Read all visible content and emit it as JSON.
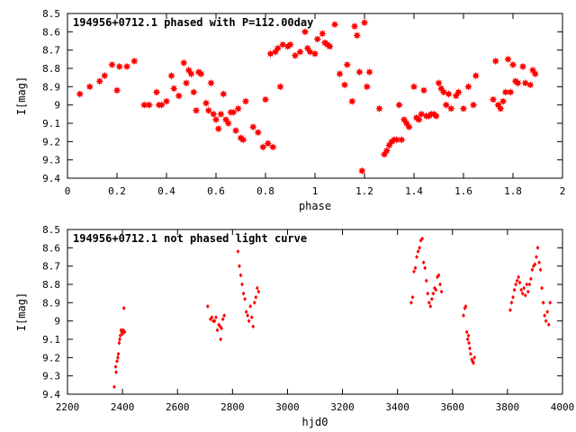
{
  "chart_data": [
    {
      "type": "scatter",
      "title": "194956+0712.1 phased with P=112.00day",
      "xlabel": "phase",
      "ylabel": "I[mag]",
      "xlim": [
        0,
        2
      ],
      "ylim": [
        8.5,
        9.4
      ],
      "y_inverted": true,
      "x_ticks": [
        "0",
        "0.2",
        "0.4",
        "0.6",
        "0.8",
        "1",
        "1.2",
        "1.4",
        "1.6",
        "1.8",
        "2"
      ],
      "y_ticks": [
        "8.5",
        "8.6",
        "8.7",
        "8.8",
        "8.9",
        "9",
        "9.1",
        "9.2",
        "9.3",
        "9.4"
      ],
      "marker": "star",
      "color": "#ff0000",
      "points": [
        [
          0.05,
          8.94
        ],
        [
          0.09,
          8.9
        ],
        [
          0.13,
          8.87
        ],
        [
          0.15,
          8.84
        ],
        [
          0.18,
          8.78
        ],
        [
          0.2,
          8.92
        ],
        [
          0.21,
          8.79
        ],
        [
          0.24,
          8.79
        ],
        [
          0.27,
          8.76
        ],
        [
          0.31,
          9.0
        ],
        [
          0.33,
          9.0
        ],
        [
          0.36,
          8.93
        ],
        [
          0.37,
          9.0
        ],
        [
          0.38,
          9.0
        ],
        [
          0.4,
          8.98
        ],
        [
          0.42,
          8.84
        ],
        [
          0.43,
          8.91
        ],
        [
          0.45,
          8.95
        ],
        [
          0.47,
          8.77
        ],
        [
          0.48,
          8.88
        ],
        [
          0.49,
          8.81
        ],
        [
          0.5,
          8.83
        ],
        [
          0.51,
          8.93
        ],
        [
          0.52,
          9.03
        ],
        [
          0.53,
          8.82
        ],
        [
          0.54,
          8.83
        ],
        [
          0.56,
          8.99
        ],
        [
          0.57,
          9.03
        ],
        [
          0.58,
          8.88
        ],
        [
          0.59,
          9.05
        ],
        [
          0.6,
          9.08
        ],
        [
          0.61,
          9.13
        ],
        [
          0.62,
          9.05
        ],
        [
          0.63,
          8.94
        ],
        [
          0.64,
          9.08
        ],
        [
          0.65,
          9.1
        ],
        [
          0.66,
          9.04
        ],
        [
          0.67,
          9.04
        ],
        [
          0.68,
          9.14
        ],
        [
          0.69,
          9.02
        ],
        [
          0.7,
          9.18
        ],
        [
          0.71,
          9.19
        ],
        [
          0.72,
          8.98
        ],
        [
          0.75,
          9.12
        ],
        [
          0.77,
          9.15
        ],
        [
          0.79,
          9.23
        ],
        [
          0.8,
          8.97
        ],
        [
          0.81,
          9.21
        ],
        [
          0.82,
          8.72
        ],
        [
          0.83,
          9.23
        ],
        [
          0.84,
          8.71
        ],
        [
          0.85,
          8.69
        ],
        [
          0.86,
          8.9
        ],
        [
          0.87,
          8.67
        ],
        [
          0.89,
          8.68
        ],
        [
          0.9,
          8.67
        ],
        [
          0.92,
          8.73
        ],
        [
          0.94,
          8.71
        ],
        [
          0.96,
          8.6
        ],
        [
          0.97,
          8.69
        ],
        [
          0.98,
          8.71
        ],
        [
          1.0,
          8.72
        ],
        [
          1.01,
          8.64
        ],
        [
          1.03,
          8.61
        ],
        [
          1.04,
          8.66
        ],
        [
          1.05,
          8.67
        ],
        [
          1.06,
          8.68
        ],
        [
          1.08,
          8.56
        ],
        [
          1.1,
          8.83
        ],
        [
          1.12,
          8.89
        ],
        [
          1.13,
          8.78
        ],
        [
          1.15,
          8.98
        ],
        [
          1.16,
          8.57
        ],
        [
          1.17,
          8.62
        ],
        [
          1.18,
          8.82
        ],
        [
          1.19,
          9.36
        ],
        [
          1.2,
          8.55
        ],
        [
          1.21,
          8.9
        ],
        [
          1.22,
          8.82
        ],
        [
          1.26,
          9.02
        ],
        [
          1.28,
          9.27
        ],
        [
          1.29,
          9.25
        ],
        [
          1.3,
          9.22
        ],
        [
          1.31,
          9.2
        ],
        [
          1.32,
          9.19
        ],
        [
          1.33,
          9.19
        ],
        [
          1.34,
          9.0
        ],
        [
          1.35,
          9.19
        ],
        [
          1.36,
          9.08
        ],
        [
          1.37,
          9.1
        ],
        [
          1.38,
          9.12
        ],
        [
          1.4,
          8.9
        ],
        [
          1.41,
          9.07
        ],
        [
          1.42,
          9.08
        ],
        [
          1.43,
          9.05
        ],
        [
          1.44,
          8.92
        ],
        [
          1.45,
          9.06
        ],
        [
          1.46,
          9.06
        ],
        [
          1.47,
          9.05
        ],
        [
          1.48,
          9.05
        ],
        [
          1.49,
          9.06
        ],
        [
          1.5,
          8.88
        ],
        [
          1.51,
          8.91
        ],
        [
          1.52,
          8.93
        ],
        [
          1.53,
          9.0
        ],
        [
          1.54,
          8.94
        ],
        [
          1.55,
          9.02
        ],
        [
          1.57,
          8.95
        ],
        [
          1.58,
          8.93
        ],
        [
          1.6,
          9.02
        ],
        [
          1.62,
          8.9
        ],
        [
          1.64,
          9.0
        ],
        [
          1.65,
          8.84
        ],
        [
          1.72,
          8.97
        ],
        [
          1.73,
          8.76
        ],
        [
          1.74,
          9.0
        ],
        [
          1.75,
          9.02
        ],
        [
          1.76,
          8.98
        ],
        [
          1.77,
          8.93
        ],
        [
          1.78,
          8.75
        ],
        [
          1.79,
          8.93
        ],
        [
          1.8,
          8.78
        ],
        [
          1.81,
          8.87
        ],
        [
          1.82,
          8.88
        ],
        [
          1.84,
          8.79
        ],
        [
          1.85,
          8.88
        ],
        [
          1.87,
          8.89
        ],
        [
          1.88,
          8.81
        ],
        [
          1.89,
          8.83
        ]
      ]
    },
    {
      "type": "scatter",
      "title": "194956+0712.1 not phased light curve",
      "xlabel": "hjd0",
      "ylabel": "I[mag]",
      "xlim": [
        2200,
        4000
      ],
      "ylim": [
        8.5,
        9.4
      ],
      "y_inverted": true,
      "x_ticks": [
        "2200",
        "2400",
        "2600",
        "2800",
        "3000",
        "3200",
        "3400",
        "3600",
        "3800",
        "4000"
      ],
      "y_ticks": [
        "8.5",
        "8.6",
        "8.7",
        "8.8",
        "8.9",
        "9",
        "9.1",
        "9.2",
        "9.3",
        "9.4"
      ],
      "marker": "diamond",
      "color": "#ff0000",
      "points": [
        [
          2370,
          9.36
        ],
        [
          2375,
          9.25
        ],
        [
          2377,
          9.28
        ],
        [
          2380,
          9.22
        ],
        [
          2383,
          9.2
        ],
        [
          2385,
          9.18
        ],
        [
          2388,
          9.12
        ],
        [
          2390,
          9.1
        ],
        [
          2392,
          9.08
        ],
        [
          2395,
          9.05
        ],
        [
          2397,
          9.06
        ],
        [
          2400,
          9.07
        ],
        [
          2403,
          9.05
        ],
        [
          2405,
          8.93
        ],
        [
          2408,
          9.06
        ],
        [
          2710,
          8.92
        ],
        [
          2720,
          8.99
        ],
        [
          2725,
          8.98
        ],
        [
          2730,
          9.0
        ],
        [
          2735,
          9.0
        ],
        [
          2740,
          8.98
        ],
        [
          2745,
          9.05
        ],
        [
          2750,
          9.02
        ],
        [
          2755,
          9.03
        ],
        [
          2757,
          9.1
        ],
        [
          2760,
          9.04
        ],
        [
          2765,
          8.99
        ],
        [
          2770,
          8.97
        ],
        [
          2820,
          8.62
        ],
        [
          2825,
          8.7
        ],
        [
          2830,
          8.75
        ],
        [
          2835,
          8.8
        ],
        [
          2840,
          8.85
        ],
        [
          2845,
          8.88
        ],
        [
          2850,
          8.95
        ],
        [
          2855,
          8.97
        ],
        [
          2860,
          9.0
        ],
        [
          2865,
          8.92
        ],
        [
          2870,
          8.98
        ],
        [
          2875,
          9.03
        ],
        [
          2880,
          8.9
        ],
        [
          2885,
          8.87
        ],
        [
          2890,
          8.82
        ],
        [
          2895,
          8.84
        ],
        [
          3450,
          8.9
        ],
        [
          3455,
          8.87
        ],
        [
          3460,
          8.73
        ],
        [
          3465,
          8.71
        ],
        [
          3470,
          8.65
        ],
        [
          3475,
          8.62
        ],
        [
          3480,
          8.6
        ],
        [
          3485,
          8.56
        ],
        [
          3490,
          8.55
        ],
        [
          3495,
          8.68
        ],
        [
          3500,
          8.71
        ],
        [
          3505,
          8.78
        ],
        [
          3510,
          8.85
        ],
        [
          3515,
          8.9
        ],
        [
          3520,
          8.92
        ],
        [
          3525,
          8.88
        ],
        [
          3530,
          8.85
        ],
        [
          3535,
          8.82
        ],
        [
          3540,
          8.83
        ],
        [
          3545,
          8.76
        ],
        [
          3550,
          8.75
        ],
        [
          3555,
          8.8
        ],
        [
          3560,
          8.84
        ],
        [
          3640,
          8.97
        ],
        [
          3645,
          8.93
        ],
        [
          3648,
          8.92
        ],
        [
          3652,
          9.06
        ],
        [
          3655,
          9.1
        ],
        [
          3658,
          9.08
        ],
        [
          3660,
          9.12
        ],
        [
          3663,
          9.15
        ],
        [
          3666,
          9.18
        ],
        [
          3670,
          9.21
        ],
        [
          3673,
          9.22
        ],
        [
          3676,
          9.23
        ],
        [
          3680,
          9.2
        ],
        [
          3810,
          8.94
        ],
        [
          3815,
          8.9
        ],
        [
          3820,
          8.87
        ],
        [
          3825,
          8.83
        ],
        [
          3830,
          8.8
        ],
        [
          3835,
          8.78
        ],
        [
          3840,
          8.76
        ],
        [
          3845,
          8.79
        ],
        [
          3850,
          8.83
        ],
        [
          3855,
          8.85
        ],
        [
          3860,
          8.82
        ],
        [
          3865,
          8.86
        ],
        [
          3870,
          8.8
        ],
        [
          3875,
          8.84
        ],
        [
          3880,
          8.8
        ],
        [
          3885,
          8.77
        ],
        [
          3890,
          8.72
        ],
        [
          3895,
          8.7
        ],
        [
          3900,
          8.69
        ],
        [
          3905,
          8.65
        ],
        [
          3910,
          8.6
        ],
        [
          3915,
          8.68
        ],
        [
          3920,
          8.72
        ],
        [
          3925,
          8.82
        ],
        [
          3930,
          8.9
        ],
        [
          3935,
          8.97
        ],
        [
          3940,
          9.0
        ],
        [
          3945,
          8.95
        ],
        [
          3950,
          9.02
        ],
        [
          3955,
          8.9
        ]
      ]
    }
  ]
}
